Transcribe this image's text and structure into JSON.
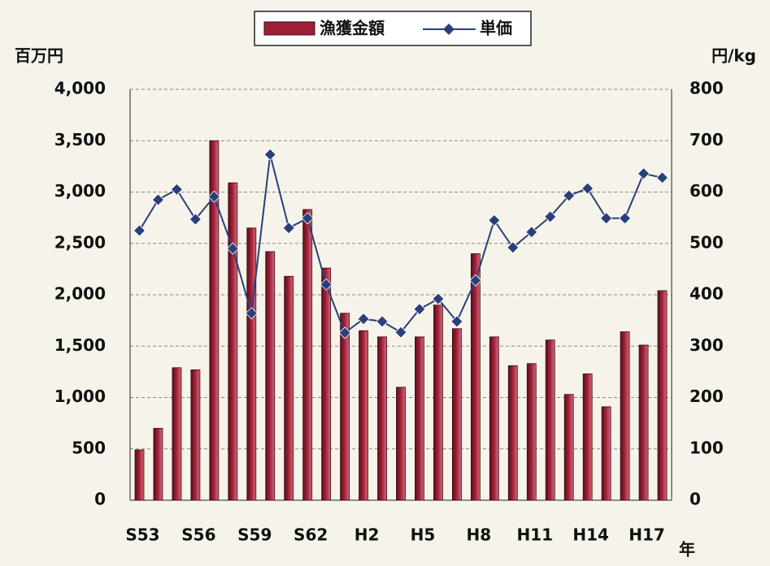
{
  "chart_data": {
    "type": "bar_line",
    "categories": [
      "S53",
      null,
      null,
      "S56",
      null,
      null,
      "S59",
      null,
      null,
      "S62",
      null,
      null,
      "H2",
      null,
      null,
      "H5",
      null,
      null,
      "H8",
      null,
      null,
      "H11",
      null,
      null,
      "H14",
      null,
      null,
      "H17",
      null
    ],
    "series": [
      {
        "name": "漁獲金額",
        "type": "bar",
        "color": "#9e1f36",
        "values": [
          490,
          700,
          1290,
          1270,
          3500,
          3090,
          2650,
          2420,
          2180,
          2830,
          2260,
          1820,
          1650,
          1590,
          1100,
          1590,
          1900,
          1670,
          2400,
          1590,
          1310,
          1330,
          1560,
          1030,
          1230,
          910,
          1640,
          1510,
          2040
        ]
      },
      {
        "name": "単価",
        "type": "line",
        "axis": "y2",
        "color": "#2b3f7a",
        "values": [
          525,
          585,
          605,
          547,
          591,
          490,
          364,
          673,
          530,
          549,
          420,
          326,
          353,
          348,
          327,
          372,
          392,
          348,
          428,
          545,
          492,
          522,
          552,
          593,
          607,
          549,
          549,
          636,
          628
        ]
      }
    ],
    "y_label": "百万円",
    "y2_label": "円/kg",
    "x_label": "年",
    "ylim": [
      0,
      4000
    ],
    "yticks": [
      0,
      500,
      {
        "value": 1000,
        "label": "1,000"
      },
      {
        "value": 1500,
        "label": "1,500"
      },
      {
        "value": 2000,
        "label": "2,000"
      },
      {
        "value": 2500,
        "label": "2,500"
      },
      {
        "value": 3000,
        "label": "3,000"
      },
      {
        "value": 3500,
        "label": "3,500"
      },
      {
        "value": 4000,
        "label": "4,000"
      }
    ],
    "y2lim": [
      0,
      800
    ],
    "y2ticks": [
      0,
      100,
      200,
      300,
      400,
      500,
      600,
      700,
      800
    ],
    "grid": true,
    "legend": "top"
  }
}
